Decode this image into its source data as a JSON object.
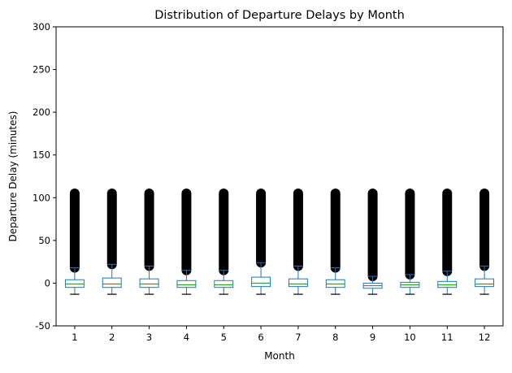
{
  "chart_data": {
    "type": "box",
    "title": "Distribution of Departure Delays by Month",
    "xlabel": "Month",
    "ylabel": "Departure Delay (minutes)",
    "ylim": [
      -50,
      300
    ],
    "yticks": [
      -50,
      0,
      50,
      100,
      150,
      200,
      250,
      300
    ],
    "grid": false,
    "categories": [
      "1",
      "2",
      "3",
      "4",
      "5",
      "6",
      "7",
      "8",
      "9",
      "10",
      "11",
      "12"
    ],
    "boxes": [
      {
        "month": "1",
        "whisker_low": -13,
        "q1": -5,
        "median": -1,
        "q3": 4,
        "whisker_high": 18,
        "outliers_from": 18,
        "outliers_to": 105
      },
      {
        "month": "2",
        "whisker_low": -13,
        "q1": -5,
        "median": -1,
        "q3": 6,
        "whisker_high": 22,
        "outliers_from": 22,
        "outliers_to": 105
      },
      {
        "month": "3",
        "whisker_low": -13,
        "q1": -5,
        "median": -1,
        "q3": 5,
        "whisker_high": 20,
        "outliers_from": 20,
        "outliers_to": 105
      },
      {
        "month": "4",
        "whisker_low": -13,
        "q1": -5,
        "median": -2,
        "q3": 3,
        "whisker_high": 15,
        "outliers_from": 15,
        "outliers_to": 105
      },
      {
        "month": "5",
        "whisker_low": -13,
        "q1": -5,
        "median": -2,
        "q3": 3,
        "whisker_high": 15,
        "outliers_from": 15,
        "outliers_to": 105
      },
      {
        "month": "6",
        "whisker_low": -13,
        "q1": -4,
        "median": 0,
        "q3": 7,
        "whisker_high": 24,
        "outliers_from": 24,
        "outliers_to": 105
      },
      {
        "month": "7",
        "whisker_low": -13,
        "q1": -4,
        "median": -1,
        "q3": 5,
        "whisker_high": 20,
        "outliers_from": 20,
        "outliers_to": 105
      },
      {
        "month": "8",
        "whisker_low": -13,
        "q1": -5,
        "median": -1,
        "q3": 4,
        "whisker_high": 18,
        "outliers_from": 18,
        "outliers_to": 105
      },
      {
        "month": "9",
        "whisker_low": -13,
        "q1": -6,
        "median": -3,
        "q3": 0,
        "whisker_high": 8,
        "outliers_from": 8,
        "outliers_to": 105
      },
      {
        "month": "10",
        "whisker_low": -13,
        "q1": -5,
        "median": -2,
        "q3": 1,
        "whisker_high": 10,
        "outliers_from": 10,
        "outliers_to": 105
      },
      {
        "month": "11",
        "whisker_low": -13,
        "q1": -5,
        "median": -2,
        "q3": 2,
        "whisker_high": 14,
        "outliers_from": 14,
        "outliers_to": 105
      },
      {
        "month": "12",
        "whisker_low": -13,
        "q1": -4,
        "median": -1,
        "q3": 5,
        "whisker_high": 20,
        "outliers_from": 20,
        "outliers_to": 105
      }
    ]
  },
  "colors": {
    "box": "#1f77b4",
    "median": "#2ca02c",
    "outliers": "#000000",
    "axes": "#000000"
  }
}
